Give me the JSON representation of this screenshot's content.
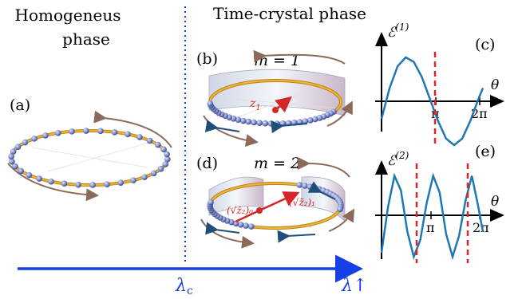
{
  "headings": {
    "homogeneous_line1": "Homogeneus",
    "homogeneous_line2": "phase",
    "time_crystal": "Time-crystal phase"
  },
  "panels": {
    "a": "(a)",
    "b": "(b)",
    "c": "(c)",
    "d": "(d)",
    "e": "(e)"
  },
  "mode_labels": {
    "b": "m = 1",
    "d": "m = 2"
  },
  "vectors": {
    "z1": "z",
    "z1_sub": "1",
    "z2_0": "(√z̄₂)₀",
    "z2_1": "(√z̄₂)₁"
  },
  "axis": {
    "lambda_c": "λ",
    "lambda_c_sub": "c",
    "lambda_end": "λ↑"
  },
  "colors": {
    "ring": "#e8a317",
    "bead": "#7f8fcf",
    "red": "#d62728",
    "curve": "#1f77b4",
    "arrow_axis": "#1540e8",
    "brown_arrow": "#8b6a5a",
    "dark_arrow": "#1f4e79"
  },
  "chart_data": [
    {
      "type": "line",
      "panel": "(c)",
      "ylabel": "ℰ(1)",
      "xlabel": "θ",
      "x_ticks": [
        "π",
        "2π"
      ],
      "series": [
        {
          "x": [
            0,
            0.5,
            1.0,
            1.5,
            2.0,
            2.5,
            3.0,
            3.5,
            4.0,
            4.5,
            5.0,
            5.5,
            6.0,
            6.28
          ],
          "y": [
            -0.4,
            0.3,
            0.8,
            1.0,
            0.9,
            0.55,
            0.05,
            -0.45,
            -0.85,
            -1.0,
            -0.85,
            -0.45,
            0.05,
            0.3
          ]
        }
      ],
      "vlines": [
        3.4
      ]
    },
    {
      "type": "line",
      "panel": "(e)",
      "ylabel": "ℰ(2)",
      "xlabel": "θ",
      "x_ticks": [
        "π",
        "2π"
      ],
      "series": [
        {
          "x": [
            0,
            0.4,
            0.8,
            1.2,
            1.6,
            2.0,
            2.4,
            2.8,
            3.2,
            3.6,
            4.0,
            4.4,
            4.8,
            5.2,
            5.6,
            6.0,
            6.28
          ],
          "y": [
            -0.9,
            0.2,
            0.95,
            0.6,
            -0.4,
            -1.0,
            -0.6,
            0.3,
            0.95,
            0.55,
            -0.45,
            -1.0,
            -0.5,
            0.35,
            0.95,
            0.2,
            -0.4
          ]
        }
      ],
      "vlines": [
        1.75,
        5.25
      ]
    }
  ]
}
